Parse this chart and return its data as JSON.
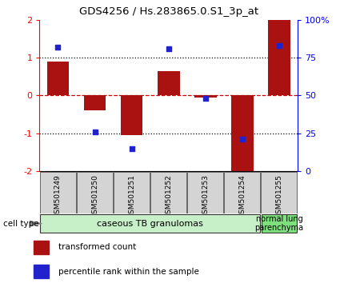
{
  "title": "GDS4256 / Hs.283865.0.S1_3p_at",
  "samples": [
    "GSM501249",
    "GSM501250",
    "GSM501251",
    "GSM501252",
    "GSM501253",
    "GSM501254",
    "GSM501255"
  ],
  "transformed_count": [
    0.9,
    -0.4,
    -1.05,
    0.65,
    -0.05,
    -2.1,
    2.0
  ],
  "percentile_rank": [
    82,
    26,
    15,
    81,
    48,
    21,
    83
  ],
  "ylim": [
    -2,
    2
  ],
  "yticks_left": [
    -2,
    -1,
    0,
    1,
    2
  ],
  "yticks_right": [
    0,
    25,
    50,
    75,
    100
  ],
  "bar_color": "#aa1111",
  "dot_color": "#2222cc",
  "hline_color": "#cc0000",
  "dotline_color": "#000000",
  "cell_type_groups": [
    {
      "label": "caseous TB granulomas",
      "start": 0,
      "end": 5,
      "color": "#c8f0c8"
    },
    {
      "label": "normal lung\nparenchyma",
      "start": 6,
      "end": 6,
      "color": "#7de07d"
    }
  ],
  "legend_items": [
    {
      "color": "#aa1111",
      "label": "transformed count"
    },
    {
      "color": "#2222cc",
      "label": "percentile rank within the sample"
    }
  ],
  "cell_type_label": "cell type"
}
